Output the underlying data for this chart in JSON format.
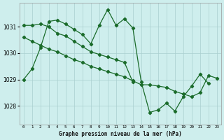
{
  "title": "Graphe pression niveau de la mer (hPa)",
  "bg_color": "#ceeeed",
  "grid_color": "#aacfcf",
  "line_color": "#1a6b2a",
  "ylim": [
    1027.3,
    1031.9
  ],
  "yticks": [
    1028,
    1029,
    1030,
    1031
  ],
  "xlim": [
    -0.5,
    23.5
  ],
  "x_labels": [
    "0",
    "1",
    "2",
    "3",
    "4",
    "5",
    "6",
    "7",
    "8",
    "9",
    "10",
    "11",
    "12",
    "13",
    "14",
    "15",
    "16",
    "17",
    "18",
    "19",
    "20",
    "21",
    "22",
    "23"
  ],
  "series_zigzag": [
    1029.0,
    1029.4,
    1030.2,
    1031.2,
    1031.25,
    1031.1,
    1030.9,
    1030.7,
    1030.35,
    1031.05,
    1031.65,
    1031.05,
    1031.3,
    1030.95,
    1028.9,
    1027.75,
    1027.85,
    1028.1,
    1027.8,
    1028.35,
    1028.75,
    1029.2,
    1028.85,
    null
  ],
  "diag_line1": [
    1031.05,
    1031.05,
    1031.1,
    1031.0,
    1030.75,
    1030.65,
    1030.45,
    1030.25,
    1030.05,
    1029.95,
    1029.85,
    1029.75,
    1029.65,
    1028.9,
    null,
    null,
    null,
    null,
    null,
    null,
    null,
    null,
    null,
    null
  ],
  "diag_line2": [
    1030.6,
    1030.45,
    1030.3,
    1030.15,
    1030.05,
    1029.9,
    1029.75,
    1029.65,
    1029.5,
    1029.4,
    1029.3,
    1029.2,
    1029.1,
    1028.95,
    1028.8,
    1028.8,
    1028.75,
    1028.7,
    1028.55,
    1028.45,
    1028.35,
    1028.5,
    1029.15,
    1029.05
  ]
}
